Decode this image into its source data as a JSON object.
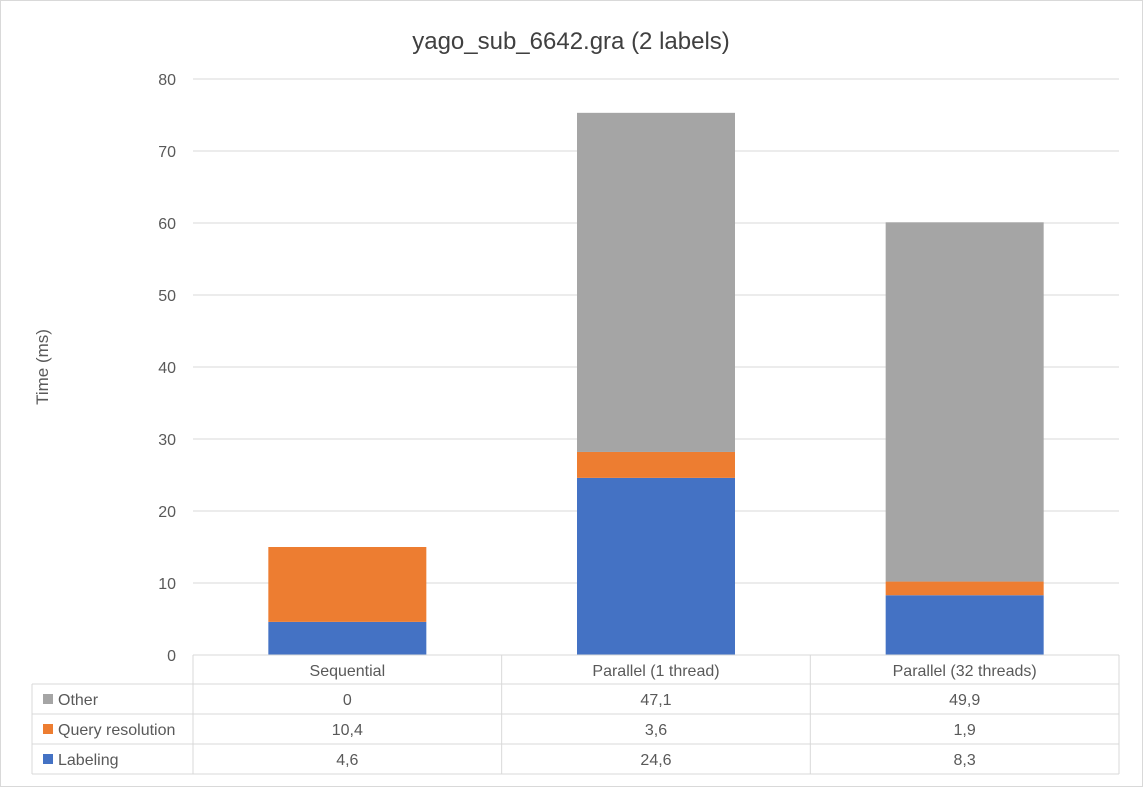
{
  "chart_data": {
    "type": "bar",
    "stacked": true,
    "title": "yago_sub_6642.gra (2 labels)",
    "xlabel": "",
    "ylabel": "Time (ms)",
    "ylim": [
      0,
      80
    ],
    "yticks": [
      "0",
      "10",
      "20",
      "30",
      "40",
      "50",
      "60",
      "70",
      "80"
    ],
    "grid": true,
    "legend_placement": "data-table",
    "categories": [
      "Sequential",
      "Parallel (1 thread)",
      "Parallel (32 threads)"
    ],
    "series": [
      {
        "name": "Labeling",
        "values": [
          4.6,
          24.6,
          8.3
        ],
        "labels": [
          "4,6",
          "24,6",
          "8,3"
        ],
        "color": "#4472c4"
      },
      {
        "name": "Query resolution",
        "values": [
          10.4,
          3.6,
          1.9
        ],
        "labels": [
          "10,4",
          "3,6",
          "1,9"
        ],
        "color": "#ed7d31"
      },
      {
        "name": "Other",
        "values": [
          0,
          47.1,
          49.9
        ],
        "labels": [
          "0",
          "47,1",
          "49,9"
        ],
        "color": "#a5a5a5"
      }
    ],
    "table_row_order": [
      "Other",
      "Query resolution",
      "Labeling"
    ]
  }
}
